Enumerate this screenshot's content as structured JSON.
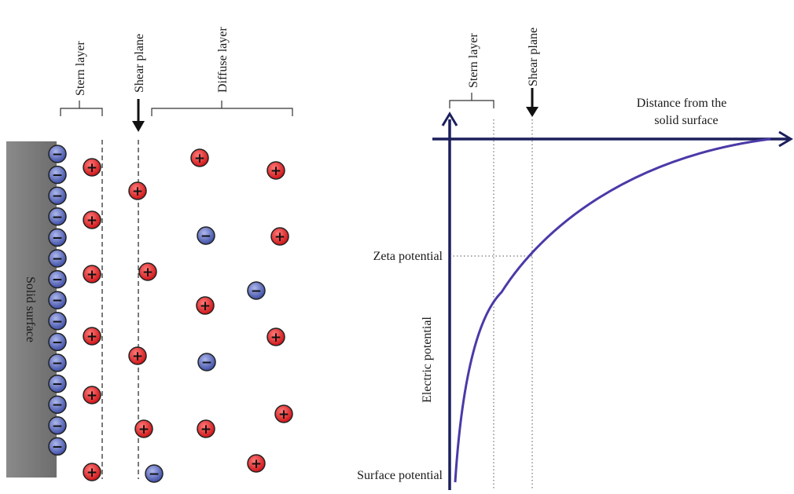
{
  "left_panel": {
    "solid_label": "Solid surface",
    "stern_label": "Stern layer",
    "shear_label": "Shear plane",
    "diffuse_label": "Diffuse layer"
  },
  "right_panel": {
    "stern_label": "Stern layer",
    "shear_label": "Shear plane",
    "x_axis_label_line1": "Distance from the",
    "x_axis_label_line2": "solid surface",
    "y_axis_label": "Electric potential",
    "zeta_label": "Zeta potential",
    "surface_label": "Surface potential"
  },
  "symbols": {
    "positive": "+",
    "negative": "−"
  },
  "colors": {
    "positive_ion": "#e01e24",
    "negative_ion": "#4f5fb0",
    "solid": "#7a7a7a",
    "axis": "#1c1f5c",
    "curve": "#4a3aa8"
  }
}
